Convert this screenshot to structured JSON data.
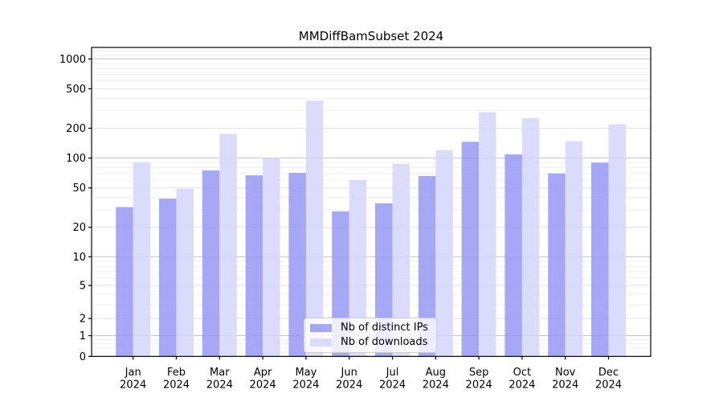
{
  "chart_data": {
    "type": "bar",
    "title": "MMDiffBamSubset 2024",
    "categories": [
      "Jan",
      "Feb",
      "Mar",
      "Apr",
      "May",
      "Jun",
      "Jul",
      "Aug",
      "Sep",
      "Oct",
      "Nov",
      "Dec"
    ],
    "category_year": "2024",
    "series": [
      {
        "name": "Nb of distinct IPs",
        "color": "rgba(150,153,244,0.85)",
        "values": [
          32,
          39,
          75,
          67,
          71,
          29,
          35,
          66,
          146,
          109,
          70,
          90
        ]
      },
      {
        "name": "Nb of downloads",
        "color": "rgba(213,214,250,0.85)",
        "values": [
          91,
          49,
          175,
          100,
          380,
          60,
          87,
          120,
          290,
          252,
          148,
          219
        ]
      }
    ],
    "xlabel": "",
    "ylabel": "",
    "yscale": "asinh",
    "ylim": [
      0,
      1305
    ],
    "yticks": [
      0,
      1,
      2,
      5,
      10,
      20,
      50,
      100,
      200,
      500,
      1000
    ],
    "ytick_labels": [
      "0",
      "1",
      "2",
      "5",
      "10",
      "20",
      "50",
      "100",
      "200",
      "500",
      "1000"
    ],
    "major_decade_ticks": [
      1,
      10,
      100,
      1000
    ],
    "grid": true,
    "legend_position": "lower center"
  },
  "colors": {
    "axis": "#000000",
    "grid_major": "#c4c4c4",
    "grid_labeled_minor": "#e2e2e2",
    "grid_minor": "#f1f1f1",
    "text": "#000000"
  }
}
